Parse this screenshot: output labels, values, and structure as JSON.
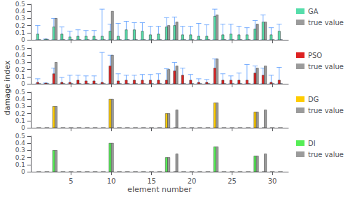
{
  "chart_data": [
    {
      "type": "bar",
      "ylabel": "damage index",
      "x": [
        1,
        2,
        3,
        4,
        5,
        6,
        7,
        8,
        9,
        10,
        11,
        12,
        13,
        14,
        15,
        16,
        17,
        18,
        19,
        20,
        21,
        22,
        23,
        24,
        25,
        26,
        27,
        28,
        29,
        30,
        31
      ],
      "xlim": [
        0.0,
        32.0
      ],
      "xticks": [
        5,
        10,
        15,
        20,
        25,
        30
      ],
      "ylim": [
        0,
        0.5
      ],
      "yticks": [
        0,
        0.1,
        0.2,
        0.3,
        0.4,
        0.5
      ],
      "grid": false,
      "legend": "right",
      "tick_labels": "y",
      "series": [
        {
          "name": "GA",
          "color": "#55ddaa",
          "values": [
            0.08,
            0.01,
            0.18,
            0.08,
            0.04,
            0.05,
            0.05,
            0.05,
            0.05,
            0.12,
            0.05,
            0.14,
            0.14,
            0.12,
            0.07,
            0.08,
            0.18,
            0.2,
            0.07,
            0.07,
            0.05,
            0.05,
            0.33,
            0.07,
            0.08,
            0.07,
            0.07,
            0.15,
            0.25,
            0.07,
            0.12
          ]
        },
        {
          "name": "true value",
          "color": "#9b9b9b",
          "values": [
            0.0,
            0.0,
            0.3,
            0.0,
            0.0,
            0.0,
            0.0,
            0.0,
            0.0,
            0.4,
            0.0,
            0.0,
            0.0,
            0.0,
            0.0,
            0.0,
            0.2,
            0.25,
            0.0,
            0.0,
            0.0,
            0.0,
            0.35,
            0.0,
            0.0,
            0.0,
            0.0,
            0.22,
            0.25,
            0.0,
            0.0
          ]
        },
        {
          "type": "error_bar",
          "color": "#5599ff",
          "values": [
            0.2,
            0.01,
            0.3,
            0.18,
            0.12,
            0.14,
            0.13,
            0.13,
            0.43,
            0.22,
            0.23,
            0.26,
            0.24,
            0.24,
            0.19,
            0.19,
            0.31,
            0.32,
            0.19,
            0.19,
            0.23,
            0.21,
            0.43,
            0.22,
            0.22,
            0.19,
            0.17,
            0.27,
            0.35,
            0.17,
            0.22
          ]
        }
      ]
    },
    {
      "type": "bar",
      "x": [
        1,
        2,
        3,
        4,
        5,
        6,
        7,
        8,
        9,
        10,
        11,
        12,
        13,
        14,
        15,
        16,
        17,
        18,
        19,
        20,
        21,
        22,
        23,
        24,
        25,
        26,
        27,
        28,
        29,
        30,
        31
      ],
      "xlim": [
        0.0,
        32.0
      ],
      "xticks": [
        5,
        10,
        15,
        20,
        25,
        30
      ],
      "ylim": [
        0,
        0.5
      ],
      "yticks": [
        0,
        0.1,
        0.2,
        0.3,
        0.4,
        0.5
      ],
      "grid": false,
      "legend": "right",
      "tick_labels": "y",
      "series": [
        {
          "name": "PSO",
          "color": "#dd2222",
          "values": [
            0.02,
            0.01,
            0.14,
            0.02,
            0.02,
            0.05,
            0.04,
            0.04,
            0.02,
            0.25,
            0.04,
            0.05,
            0.05,
            0.05,
            0.05,
            0.05,
            0.05,
            0.18,
            0.12,
            0.05,
            0.02,
            0.02,
            0.22,
            0.05,
            0.05,
            0.05,
            0.05,
            0.15,
            0.12,
            0.02,
            0.05
          ]
        },
        {
          "name": "true value",
          "color": "#9b9b9b",
          "values": [
            0.0,
            0.0,
            0.3,
            0.0,
            0.0,
            0.0,
            0.0,
            0.0,
            0.0,
            0.4,
            0.0,
            0.0,
            0.0,
            0.0,
            0.0,
            0.0,
            0.2,
            0.25,
            0.0,
            0.0,
            0.0,
            0.0,
            0.35,
            0.0,
            0.0,
            0.0,
            0.0,
            0.22,
            0.25,
            0.0,
            0.0
          ]
        },
        {
          "type": "error_bar",
          "color": "#5599ff",
          "values": [
            0.07,
            0.01,
            0.22,
            0.09,
            0.12,
            0.12,
            0.11,
            0.11,
            0.44,
            0.4,
            0.14,
            0.12,
            0.12,
            0.13,
            0.13,
            0.14,
            0.21,
            0.3,
            0.22,
            0.13,
            0.07,
            0.06,
            0.35,
            0.14,
            0.11,
            0.15,
            0.27,
            0.25,
            0.22,
            0.12,
            0.23
          ]
        }
      ]
    },
    {
      "type": "bar",
      "x": [
        1,
        2,
        3,
        4,
        5,
        6,
        7,
        8,
        9,
        10,
        11,
        12,
        13,
        14,
        15,
        16,
        17,
        18,
        19,
        20,
        21,
        22,
        23,
        24,
        25,
        26,
        27,
        28,
        29,
        30,
        31
      ],
      "xlim": [
        0.0,
        32.0
      ],
      "xticks": [
        5,
        10,
        15,
        20,
        25,
        30
      ],
      "ylim": [
        0,
        0.5
      ],
      "yticks": [
        0,
        0.1,
        0.2,
        0.3,
        0.4,
        0.5
      ],
      "grid": false,
      "legend": "right",
      "tick_labels": "y",
      "series": [
        {
          "name": "DG",
          "color": "#ffcc00",
          "values": [
            0.0,
            0.0,
            0.3,
            0.0,
            0.0,
            0.0,
            0.0,
            0.0,
            0.0,
            0.4,
            0.0,
            0.0,
            0.0,
            0.0,
            0.0,
            0.0,
            0.2,
            0.0,
            0.0,
            0.0,
            0.0,
            0.0,
            0.35,
            0.0,
            0.0,
            0.0,
            0.0,
            0.22,
            0.0,
            0.0,
            0.0
          ]
        },
        {
          "name": "true value",
          "color": "#9b9b9b",
          "values": [
            0.0,
            0.0,
            0.3,
            0.0,
            0.0,
            0.0,
            0.0,
            0.0,
            0.0,
            0.4,
            0.0,
            0.0,
            0.0,
            0.0,
            0.0,
            0.0,
            0.2,
            0.25,
            0.0,
            0.0,
            0.0,
            0.0,
            0.35,
            0.0,
            0.0,
            0.0,
            0.0,
            0.22,
            0.25,
            0.0,
            0.0
          ]
        }
      ]
    },
    {
      "type": "bar",
      "xlabel": "element number",
      "x": [
        1,
        2,
        3,
        4,
        5,
        6,
        7,
        8,
        9,
        10,
        11,
        12,
        13,
        14,
        15,
        16,
        17,
        18,
        19,
        20,
        21,
        22,
        23,
        24,
        25,
        26,
        27,
        28,
        29,
        30,
        31
      ],
      "xlim": [
        0.0,
        32.0
      ],
      "xticks": [
        5,
        10,
        15,
        20,
        25,
        30
      ],
      "ylim": [
        0,
        0.5
      ],
      "yticks": [
        0,
        0.1,
        0.2,
        0.3,
        0.4,
        0.5
      ],
      "grid": false,
      "legend": "right",
      "series": [
        {
          "name": "DI",
          "color": "#55ee55",
          "values": [
            0.0,
            0.0,
            0.3,
            0.0,
            0.0,
            0.0,
            0.0,
            0.0,
            0.0,
            0.4,
            0.0,
            0.0,
            0.0,
            0.0,
            0.0,
            0.0,
            0.2,
            0.0,
            0.0,
            0.0,
            0.0,
            0.0,
            0.35,
            0.0,
            0.0,
            0.0,
            0.0,
            0.22,
            0.0,
            0.0,
            0.0
          ]
        },
        {
          "name": "true value",
          "color": "#9b9b9b",
          "values": [
            0.0,
            0.0,
            0.3,
            0.0,
            0.0,
            0.0,
            0.0,
            0.0,
            0.0,
            0.4,
            0.0,
            0.0,
            0.0,
            0.0,
            0.0,
            0.0,
            0.2,
            0.25,
            0.0,
            0.0,
            0.0,
            0.0,
            0.35,
            0.0,
            0.0,
            0.0,
            0.0,
            0.22,
            0.25,
            0.0,
            0.0
          ]
        }
      ]
    }
  ]
}
